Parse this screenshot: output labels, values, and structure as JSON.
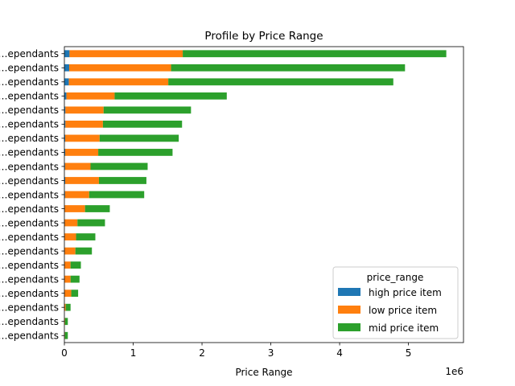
{
  "chart_data": {
    "type": "bar",
    "orientation": "horizontal",
    "stacked": true,
    "title": "Profile by Price Range",
    "xlabel": "Price Range",
    "ylabel": "",
    "x_offset_label": "1e6",
    "x_ticks": [
      "0",
      "1",
      "2",
      "3",
      "4",
      "5"
    ],
    "x_tick_values": [
      0,
      1000000,
      2000000,
      3000000,
      4000000,
      5000000
    ],
    "xlim": [
      0,
      5800000
    ],
    "categories": [
      "…ependants",
      "…ependants",
      "…ependants",
      "…ependants",
      "…ependants",
      "…ependants",
      "…ependants",
      "…ependants",
      "…ependants",
      "…ependants",
      "…ependants",
      "…ependants",
      "…ependants",
      "…ependants",
      "…ependants",
      "…ependants",
      "…ependants",
      "…ependants",
      "…ependants",
      "…ependants",
      "…ependants"
    ],
    "series": [
      {
        "name": "high price item",
        "color": "#1f77b4",
        "values": [
          75000,
          70000,
          65000,
          30000,
          15000,
          15000,
          12000,
          12000,
          10000,
          12000,
          10000,
          6000,
          5000,
          4000,
          4000,
          2000,
          2000,
          2000,
          1000,
          500,
          500
        ]
      },
      {
        "name": "low price item",
        "color": "#ff7f0e",
        "values": [
          1645000,
          1480000,
          1445000,
          700000,
          555000,
          545000,
          500000,
          480000,
          370000,
          490000,
          350000,
          294000,
          185000,
          166000,
          156000,
          88000,
          88000,
          98000,
          19000,
          9500,
          7500
        ]
      },
      {
        "name": "mid price item",
        "color": "#2ca02c",
        "values": [
          3830000,
          3400000,
          3270000,
          1630000,
          1270000,
          1150000,
          1150000,
          1080000,
          830000,
          690000,
          800000,
          360000,
          400000,
          280000,
          240000,
          150000,
          130000,
          100000,
          70000,
          40000,
          42000
        ]
      }
    ],
    "legend": {
      "title": "price_range",
      "placement": "lower-right"
    },
    "grid": false
  }
}
